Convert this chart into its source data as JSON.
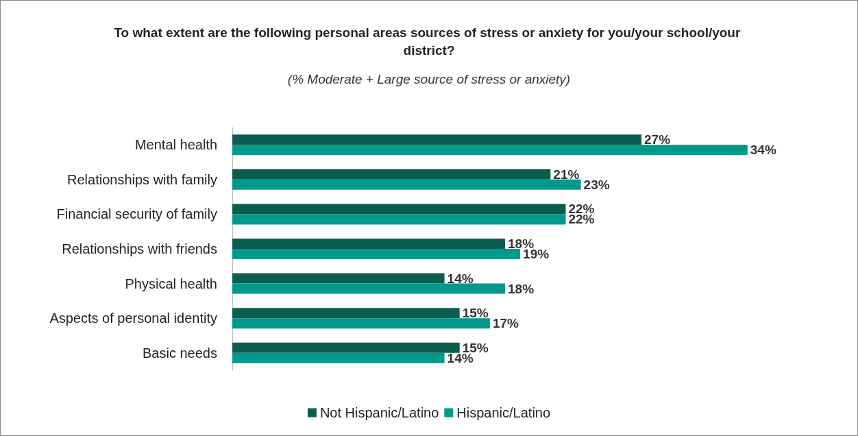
{
  "chart_data": {
    "type": "bar",
    "orientation": "horizontal",
    "title": "To what extent are the following personal areas sources of stress or anxiety for you/your school/your district?",
    "subtitle": "(% Moderate + Large source of stress or anxiety)",
    "categories": [
      "Mental health",
      "Relationships with family",
      "Financial security of family",
      "Relationships with friends",
      "Physical health",
      "Aspects of personal identity",
      "Basic needs"
    ],
    "series": [
      {
        "name": "Not Hispanic/Latino",
        "color": "#0b5e4f",
        "values": [
          27,
          21,
          22,
          18,
          14,
          15,
          15
        ],
        "value_labels": [
          "27%",
          "21%",
          "22%",
          "18%",
          "14%",
          "15%",
          "15%"
        ]
      },
      {
        "name": "Hispanic/Latino",
        "color": "#00998a",
        "values": [
          34,
          23,
          22,
          19,
          18,
          17,
          14
        ],
        "value_labels": [
          "34%",
          "23%",
          "22%",
          "19%",
          "18%",
          "17%",
          "14%"
        ]
      }
    ],
    "legend": "bottom"
  }
}
